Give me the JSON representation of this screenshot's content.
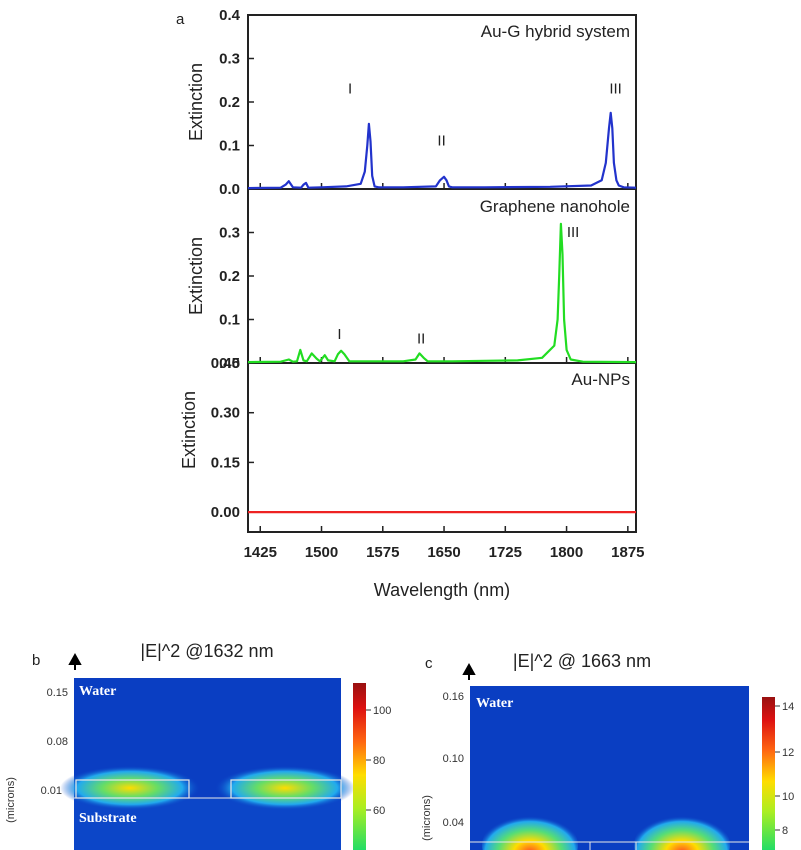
{
  "panel_a": {
    "letter": "a",
    "xlabel": "Wavelength (nm)",
    "x_ticks": [
      "1425",
      "1500",
      "1575",
      "1650",
      "1725",
      "1800",
      "1875"
    ]
  },
  "panel_b": {
    "letter": "b",
    "title": "|E|^2 @1632 nm",
    "ylabel": "(microns)",
    "y_ticks": [
      "0.15",
      "0.08",
      "0.01"
    ],
    "regions": [
      "Water",
      "Substrate"
    ],
    "colorbar_ticks": [
      "100",
      "80",
      "60"
    ]
  },
  "panel_c": {
    "letter": "c",
    "title": "|E|^2 @ 1663 nm",
    "ylabel": "(microns)",
    "y_ticks": [
      "0.16",
      "0.10",
      "0.04"
    ],
    "regions": [
      "Water"
    ],
    "colorbar_ticks": [
      "14",
      "12",
      "10",
      "8"
    ]
  },
  "chart_data": [
    {
      "type": "line",
      "title": "Au-G hybrid system",
      "ylabel": "Extinction",
      "xlim": [
        1410,
        1885
      ],
      "ylim": [
        0,
        0.4
      ],
      "y_ticks": [
        "0.0",
        "0.1",
        "0.2",
        "0.3",
        "0.4"
      ],
      "color": "#2233cc",
      "annotations": [
        {
          "text": "I",
          "x": 1535,
          "y": 0.22
        },
        {
          "text": "II",
          "x": 1647,
          "y": 0.1
        },
        {
          "text": "III",
          "x": 1860,
          "y": 0.22
        }
      ],
      "series": [
        {
          "x": [
            1410,
            1450,
            1456,
            1460,
            1465,
            1475,
            1478,
            1481,
            1484,
            1500,
            1530,
            1548,
            1553,
            1556,
            1558,
            1560,
            1562,
            1565,
            1570,
            1600,
            1640,
            1645,
            1650,
            1653,
            1656,
            1660,
            1700,
            1780,
            1830,
            1843,
            1848,
            1852,
            1854,
            1856,
            1858,
            1861,
            1864,
            1870,
            1885
          ],
          "y": [
            0.002,
            0.003,
            0.01,
            0.018,
            0.004,
            0.003,
            0.01,
            0.014,
            0.003,
            0.004,
            0.006,
            0.012,
            0.04,
            0.1,
            0.15,
            0.11,
            0.03,
            0.006,
            0.004,
            0.004,
            0.006,
            0.02,
            0.028,
            0.02,
            0.006,
            0.004,
            0.004,
            0.005,
            0.008,
            0.02,
            0.06,
            0.14,
            0.175,
            0.14,
            0.06,
            0.02,
            0.008,
            0.004,
            0.003
          ]
        }
      ]
    },
    {
      "type": "line",
      "title": "Graphene nanohole",
      "ylabel": "Extinction",
      "xlim": [
        1410,
        1885
      ],
      "ylim": [
        0,
        0.4
      ],
      "y_ticks": [
        "0.0",
        "0.1",
        "0.2",
        "0.3"
      ],
      "color": "#22dd22",
      "annotations": [
        {
          "text": "I",
          "x": 1522,
          "y": 0.055
        },
        {
          "text": "II",
          "x": 1622,
          "y": 0.045
        },
        {
          "text": "III",
          "x": 1808,
          "y": 0.29
        }
      ],
      "series": [
        {
          "x": [
            1410,
            1450,
            1460,
            1465,
            1470,
            1474,
            1478,
            1482,
            1488,
            1494,
            1498,
            1504,
            1508,
            1516,
            1520,
            1524,
            1528,
            1534,
            1560,
            1600,
            1615,
            1620,
            1625,
            1630,
            1660,
            1700,
            1740,
            1770,
            1785,
            1789,
            1791,
            1793,
            1795,
            1797,
            1800,
            1805,
            1820,
            1885
          ],
          "y": [
            0.002,
            0.003,
            0.008,
            0.003,
            0.004,
            0.03,
            0.006,
            0.004,
            0.022,
            0.01,
            0.004,
            0.018,
            0.006,
            0.004,
            0.02,
            0.028,
            0.02,
            0.004,
            0.004,
            0.004,
            0.008,
            0.022,
            0.012,
            0.004,
            0.004,
            0.005,
            0.006,
            0.012,
            0.04,
            0.1,
            0.2,
            0.32,
            0.25,
            0.1,
            0.03,
            0.008,
            0.003,
            0.002
          ]
        }
      ]
    },
    {
      "type": "line",
      "title": "Au-NPs",
      "ylabel": "Extinction",
      "xlim": [
        1410,
        1885
      ],
      "ylim": [
        -0.06,
        0.45
      ],
      "y_ticks": [
        "0.00",
        "0.15",
        "0.30",
        "0.45"
      ],
      "color": "#ee2222",
      "annotations": [],
      "series": [
        {
          "x": [
            1410,
            1885
          ],
          "y": [
            0,
            0
          ]
        }
      ]
    }
  ]
}
